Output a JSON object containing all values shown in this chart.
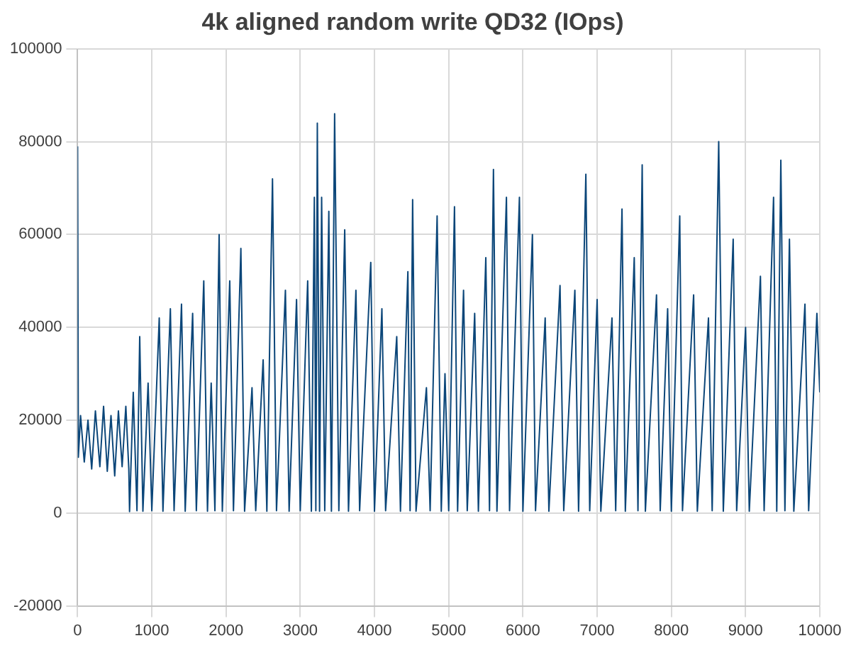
{
  "chart_data": {
    "type": "line",
    "title": "4k aligned random write QD32 (IOps)",
    "color": "#0b4679",
    "x": [
      0,
      10,
      40,
      90,
      140,
      190,
      240,
      300,
      350,
      400,
      450,
      500,
      550,
      600,
      650,
      690,
      700,
      750,
      800,
      837,
      880,
      950,
      1000,
      1100,
      1150,
      1250,
      1300,
      1400,
      1450,
      1550,
      1600,
      1700,
      1750,
      1800,
      1850,
      1907,
      1950,
      2050,
      2100,
      2200,
      2250,
      2350,
      2400,
      2500,
      2550,
      2626,
      2680,
      2800,
      2850,
      2950,
      3000,
      3100,
      3150,
      3190,
      3210,
      3230,
      3260,
      3288,
      3330,
      3385,
      3420,
      3463,
      3520,
      3599,
      3650,
      3750,
      3800,
      3950,
      4000,
      4100,
      4150,
      4300,
      4350,
      4450,
      4480,
      4514,
      4560,
      4700,
      4750,
      4844,
      4900,
      4950,
      5000,
      5078,
      5120,
      5200,
      5250,
      5350,
      5400,
      5500,
      5550,
      5603,
      5650,
      5778,
      5820,
      5953,
      6000,
      6128,
      6170,
      6300,
      6350,
      6500,
      6550,
      6700,
      6750,
      6848,
      6900,
      7000,
      7050,
      7200,
      7250,
      7335,
      7380,
      7500,
      7550,
      7607,
      7650,
      7800,
      7850,
      7950,
      8000,
      8113,
      8150,
      8300,
      8350,
      8500,
      8550,
      8638,
      8700,
      8833,
      8880,
      9000,
      9050,
      9200,
      9250,
      9377,
      9420,
      9475,
      9530,
      9591,
      9650,
      9800,
      9850,
      9961,
      10000
    ],
    "values": [
      79000,
      12000,
      21000,
      11000,
      20000,
      9500,
      22000,
      10000,
      23000,
      9000,
      21000,
      8000,
      22000,
      10000,
      23000,
      9500,
      300,
      26000,
      500,
      38000,
      400,
      28000,
      500,
      42000,
      400,
      44000,
      500,
      45000,
      400,
      43000,
      500,
      50000,
      400,
      28000,
      500,
      60000,
      400,
      50000,
      500,
      57000,
      400,
      27000,
      500,
      33000,
      400,
      72000,
      500,
      48000,
      400,
      46000,
      500,
      50000,
      400,
      68000,
      500,
      84000,
      400,
      68000,
      500,
      65000,
      400,
      86000,
      500,
      61000,
      400,
      48000,
      500,
      54000,
      400,
      44000,
      500,
      38000,
      400,
      52000,
      500,
      67500,
      400,
      27000,
      500,
      64000,
      400,
      30000,
      500,
      66000,
      400,
      48000,
      500,
      43000,
      400,
      55000,
      500,
      74000,
      400,
      68000,
      500,
      68000,
      400,
      60000,
      500,
      42000,
      400,
      49000,
      500,
      48000,
      400,
      73000,
      500,
      46000,
      400,
      42000,
      500,
      65500,
      400,
      55000,
      500,
      75000,
      400,
      47000,
      500,
      44000,
      400,
      64000,
      500,
      47000,
      400,
      42000,
      500,
      80000,
      400,
      59000,
      500,
      40000,
      400,
      51000,
      500,
      68000,
      400,
      76000,
      500,
      59000,
      400,
      45000,
      500,
      43000,
      26000
    ],
    "xlim": [
      0,
      10000
    ],
    "xticks": [
      0,
      1000,
      2000,
      3000,
      4000,
      5000,
      6000,
      7000,
      8000,
      9000,
      10000
    ],
    "ylim": [
      -20000,
      100000
    ],
    "yticks": [
      -20000,
      0,
      20000,
      40000,
      60000,
      80000,
      100000
    ],
    "grid": true,
    "legend": false,
    "marker": "none",
    "line_style": "solid"
  }
}
